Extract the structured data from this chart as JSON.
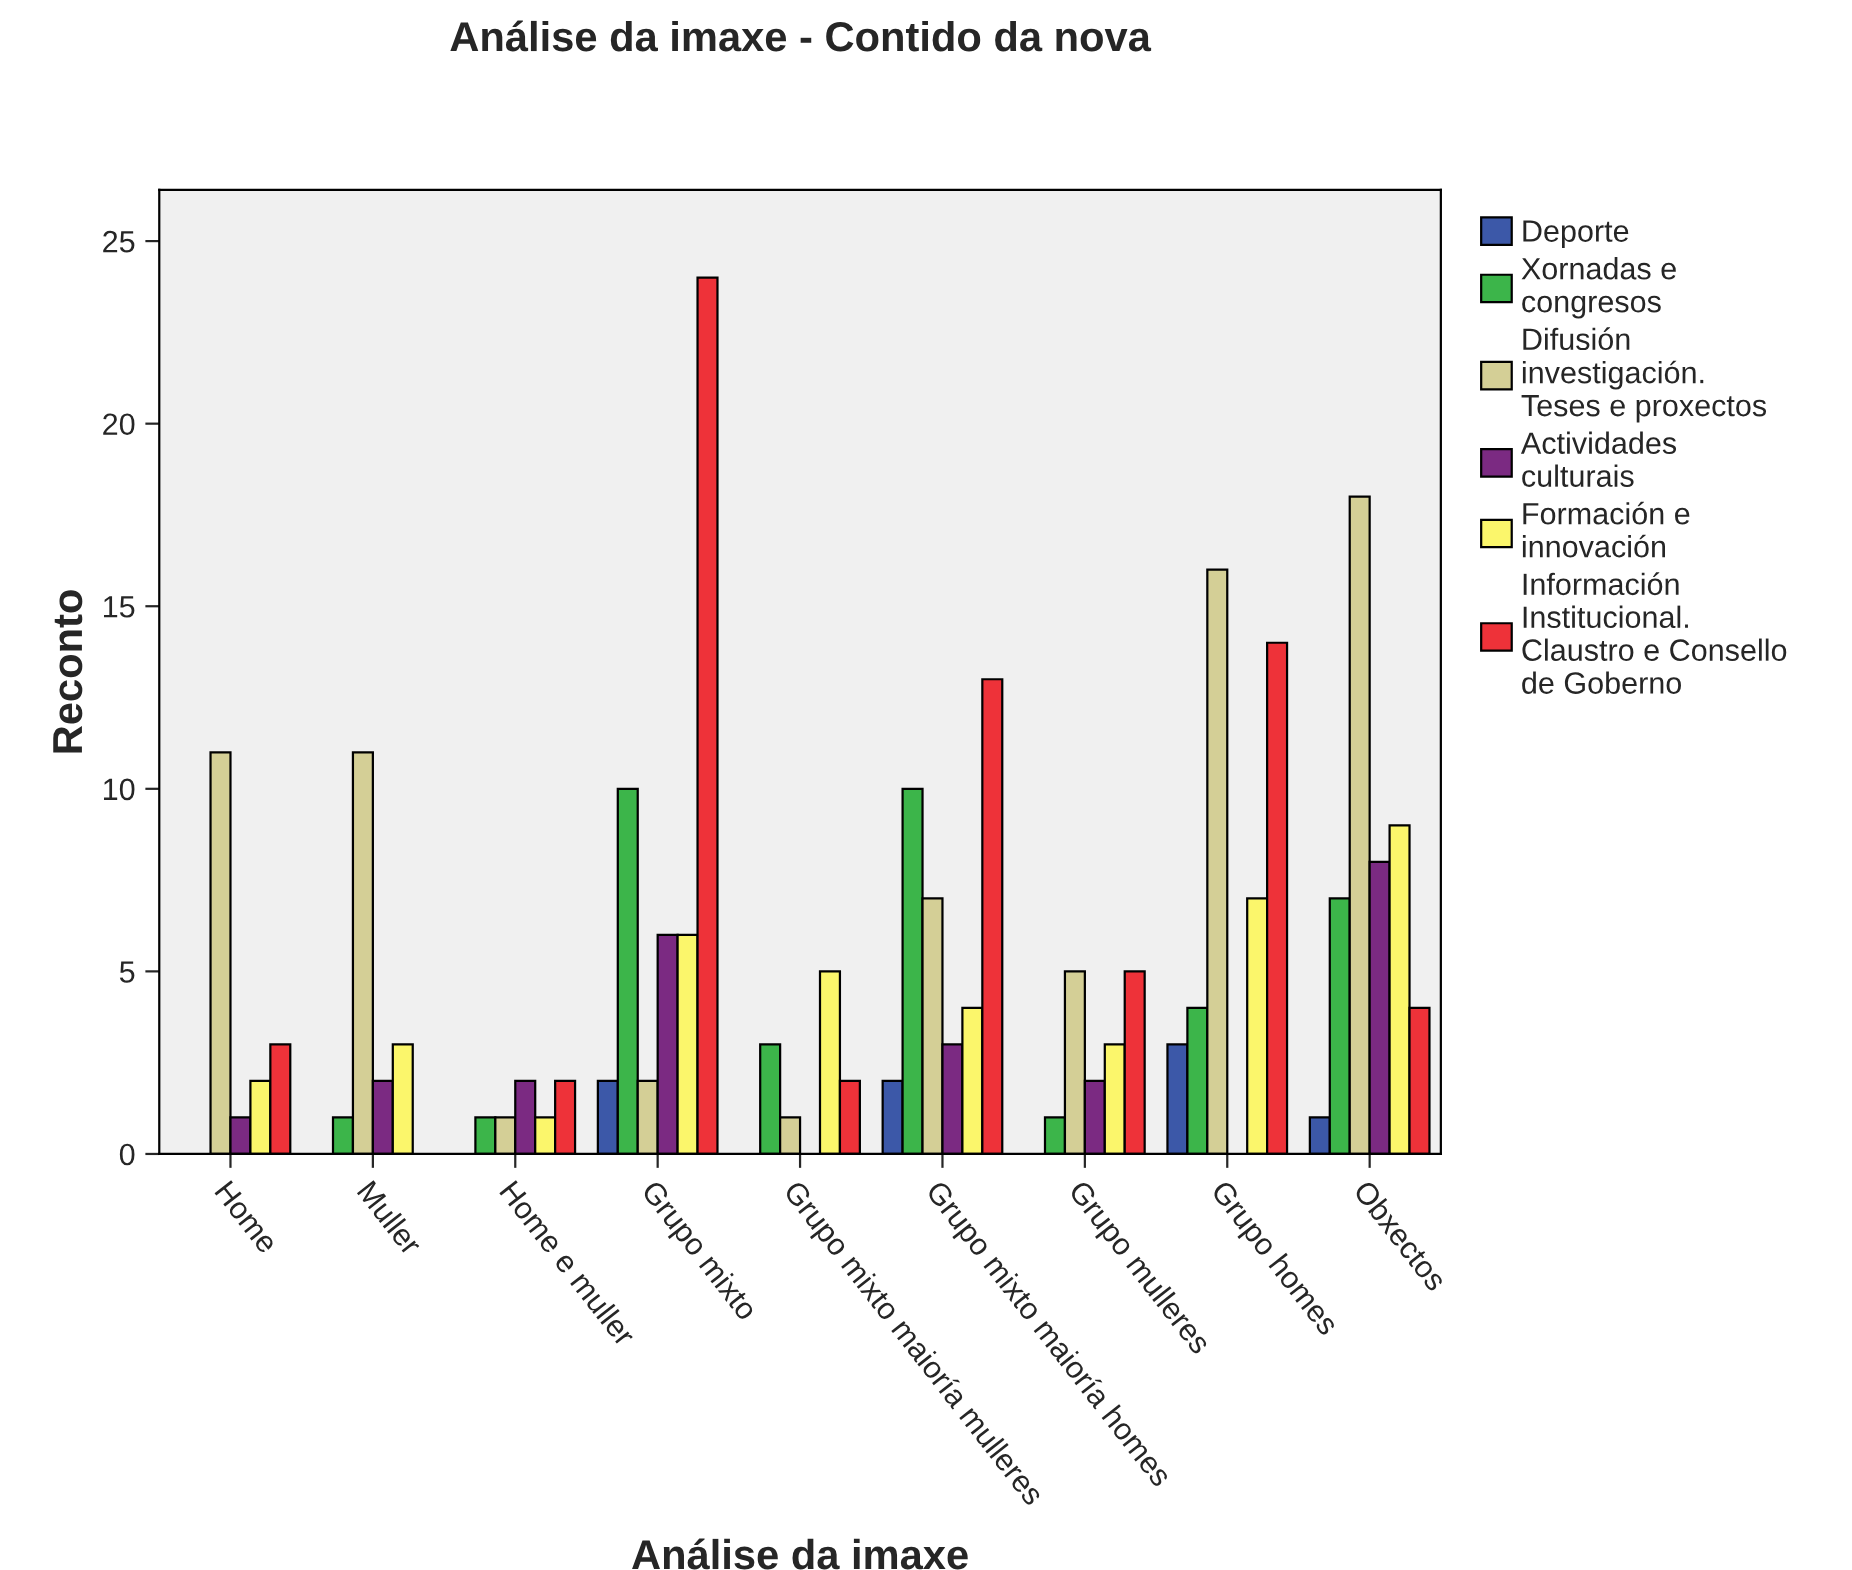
{
  "chart_data": {
    "type": "bar",
    "title": "Análise da imaxe - Contido da nova",
    "xlabel": "Análise da imaxe",
    "ylabel": "Reconto",
    "categories": [
      "Home",
      "Muller",
      "Home e muller",
      "Grupo mixto",
      "Grupo mixto maioría mulleres",
      "Grupo mixto maioría homes",
      "Grupo mulleres",
      "Grupo homes",
      "Obxectos"
    ],
    "series": [
      {
        "name": "Deporte",
        "color": "#3c58a8",
        "values": [
          0,
          0,
          0,
          2,
          0,
          2,
          0,
          3,
          1
        ]
      },
      {
        "name": "Xornadas e\ncongresos",
        "color": "#3cb54a",
        "values": [
          0,
          1,
          1,
          10,
          3,
          10,
          1,
          4,
          7
        ]
      },
      {
        "name": "Difusión\ninvestigación.\nTeses e proxectos",
        "color": "#d4cf96",
        "values": [
          11,
          11,
          1,
          2,
          1,
          7,
          5,
          16,
          18
        ]
      },
      {
        "name": "Actividades\nculturais",
        "color": "#7b2a82",
        "values": [
          1,
          2,
          2,
          6,
          0,
          3,
          2,
          0,
          8
        ]
      },
      {
        "name": "Formación e\ninnovación",
        "color": "#fbf66b",
        "values": [
          2,
          3,
          1,
          6,
          5,
          4,
          3,
          7,
          9
        ]
      },
      {
        "name": "Información\nInstitucional.\nClaustro e Consello\nde Goberno",
        "color": "#ee3239",
        "values": [
          3,
          0,
          2,
          24,
          2,
          13,
          5,
          14,
          4
        ]
      }
    ],
    "ylim": [
      0,
      26.4
    ],
    "yticks": [
      0,
      5,
      10,
      15,
      20,
      25
    ],
    "grid": false,
    "legend": "right"
  }
}
